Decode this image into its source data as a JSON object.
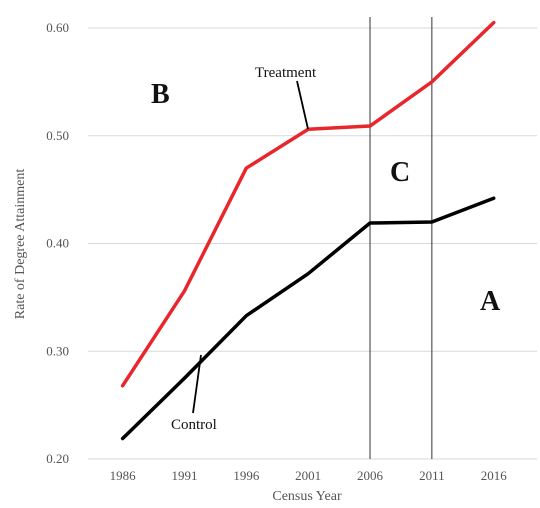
{
  "chart_data": {
    "type": "line",
    "title": "",
    "xlabel": "Census Year",
    "ylabel": "Rate of Degree Attainment",
    "x": [
      1986,
      1991,
      1996,
      2001,
      2006,
      2011,
      2016
    ],
    "x_tick_labels": [
      "1986",
      "1991",
      "1996",
      "2001",
      "2006",
      "2011",
      "2016"
    ],
    "ylim": [
      0.2,
      0.6
    ],
    "y_ticks": [
      0.2,
      0.3,
      0.4,
      0.5,
      0.6
    ],
    "y_tick_labels": [
      "0.20",
      "0.30",
      "0.40",
      "0.50",
      "0.60"
    ],
    "grid": "horizontal",
    "legend": "none",
    "series": [
      {
        "name": "Treatment",
        "color": "#e8262b",
        "values": [
          0.268,
          0.356,
          0.47,
          0.506,
          0.509,
          0.55,
          0.605
        ]
      },
      {
        "name": "Control",
        "color": "#000000",
        "values": [
          0.219,
          0.275,
          0.333,
          0.372,
          0.419,
          0.42,
          0.442
        ]
      }
    ],
    "vertical_lines": [
      2006,
      2011
    ],
    "region_labels": [
      "A",
      "B",
      "C"
    ],
    "grid_color": "#d9d9d9"
  }
}
